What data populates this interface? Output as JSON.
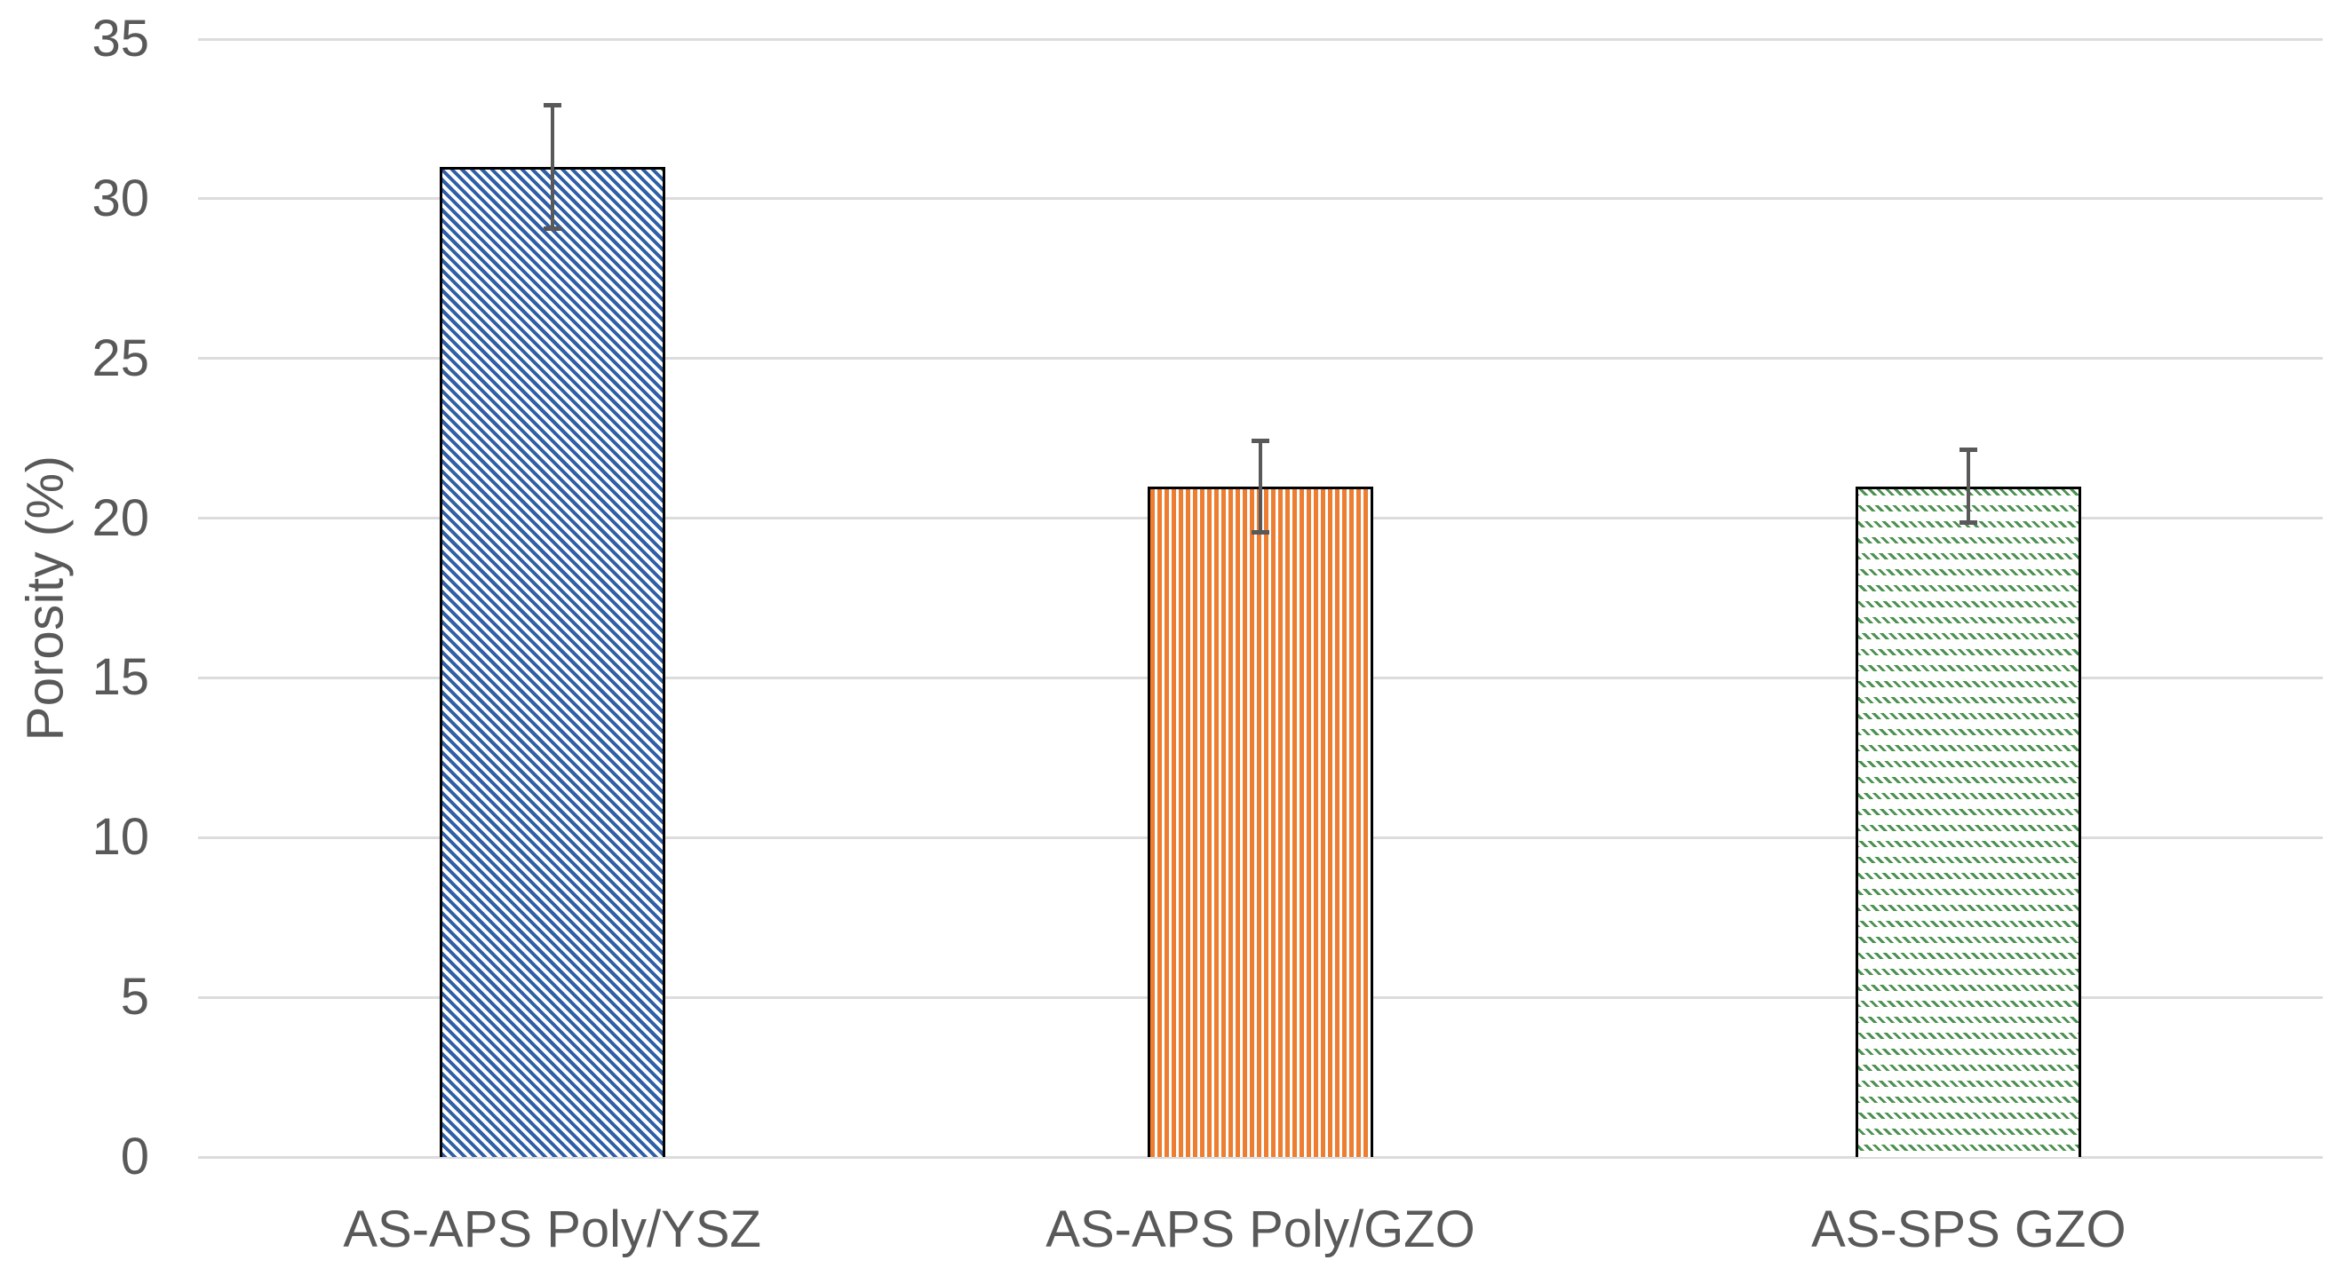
{
  "figure": {
    "background_color": "#FFFFFF",
    "text_color": "#595959",
    "gridline_color": "#DCDCDC",
    "error_bar_color": "#595959",
    "bar_border_color": "#000000"
  },
  "chart_data": {
    "type": "bar",
    "title": "",
    "xlabel": "",
    "ylabel": "Porosity (%)",
    "categories": [
      "AS-APS Poly/YSZ",
      "AS-APS Poly/GZO",
      "AS-SPS GZO"
    ],
    "values": [
      31,
      21,
      21
    ],
    "error_bars": [
      2,
      1.5,
      1.2
    ],
    "ylim": [
      0,
      35
    ],
    "yticks": [
      0,
      5,
      10,
      15,
      20,
      25,
      30,
      35
    ],
    "grid": true,
    "legend_position": "none",
    "bar_patterns": [
      "diagonal-hatch",
      "vertical-stripes",
      "dashed-diagonal-rows"
    ],
    "bar_pattern_colors": [
      "#2F5FA6",
      "#ED7D31",
      "#4C9150"
    ]
  }
}
